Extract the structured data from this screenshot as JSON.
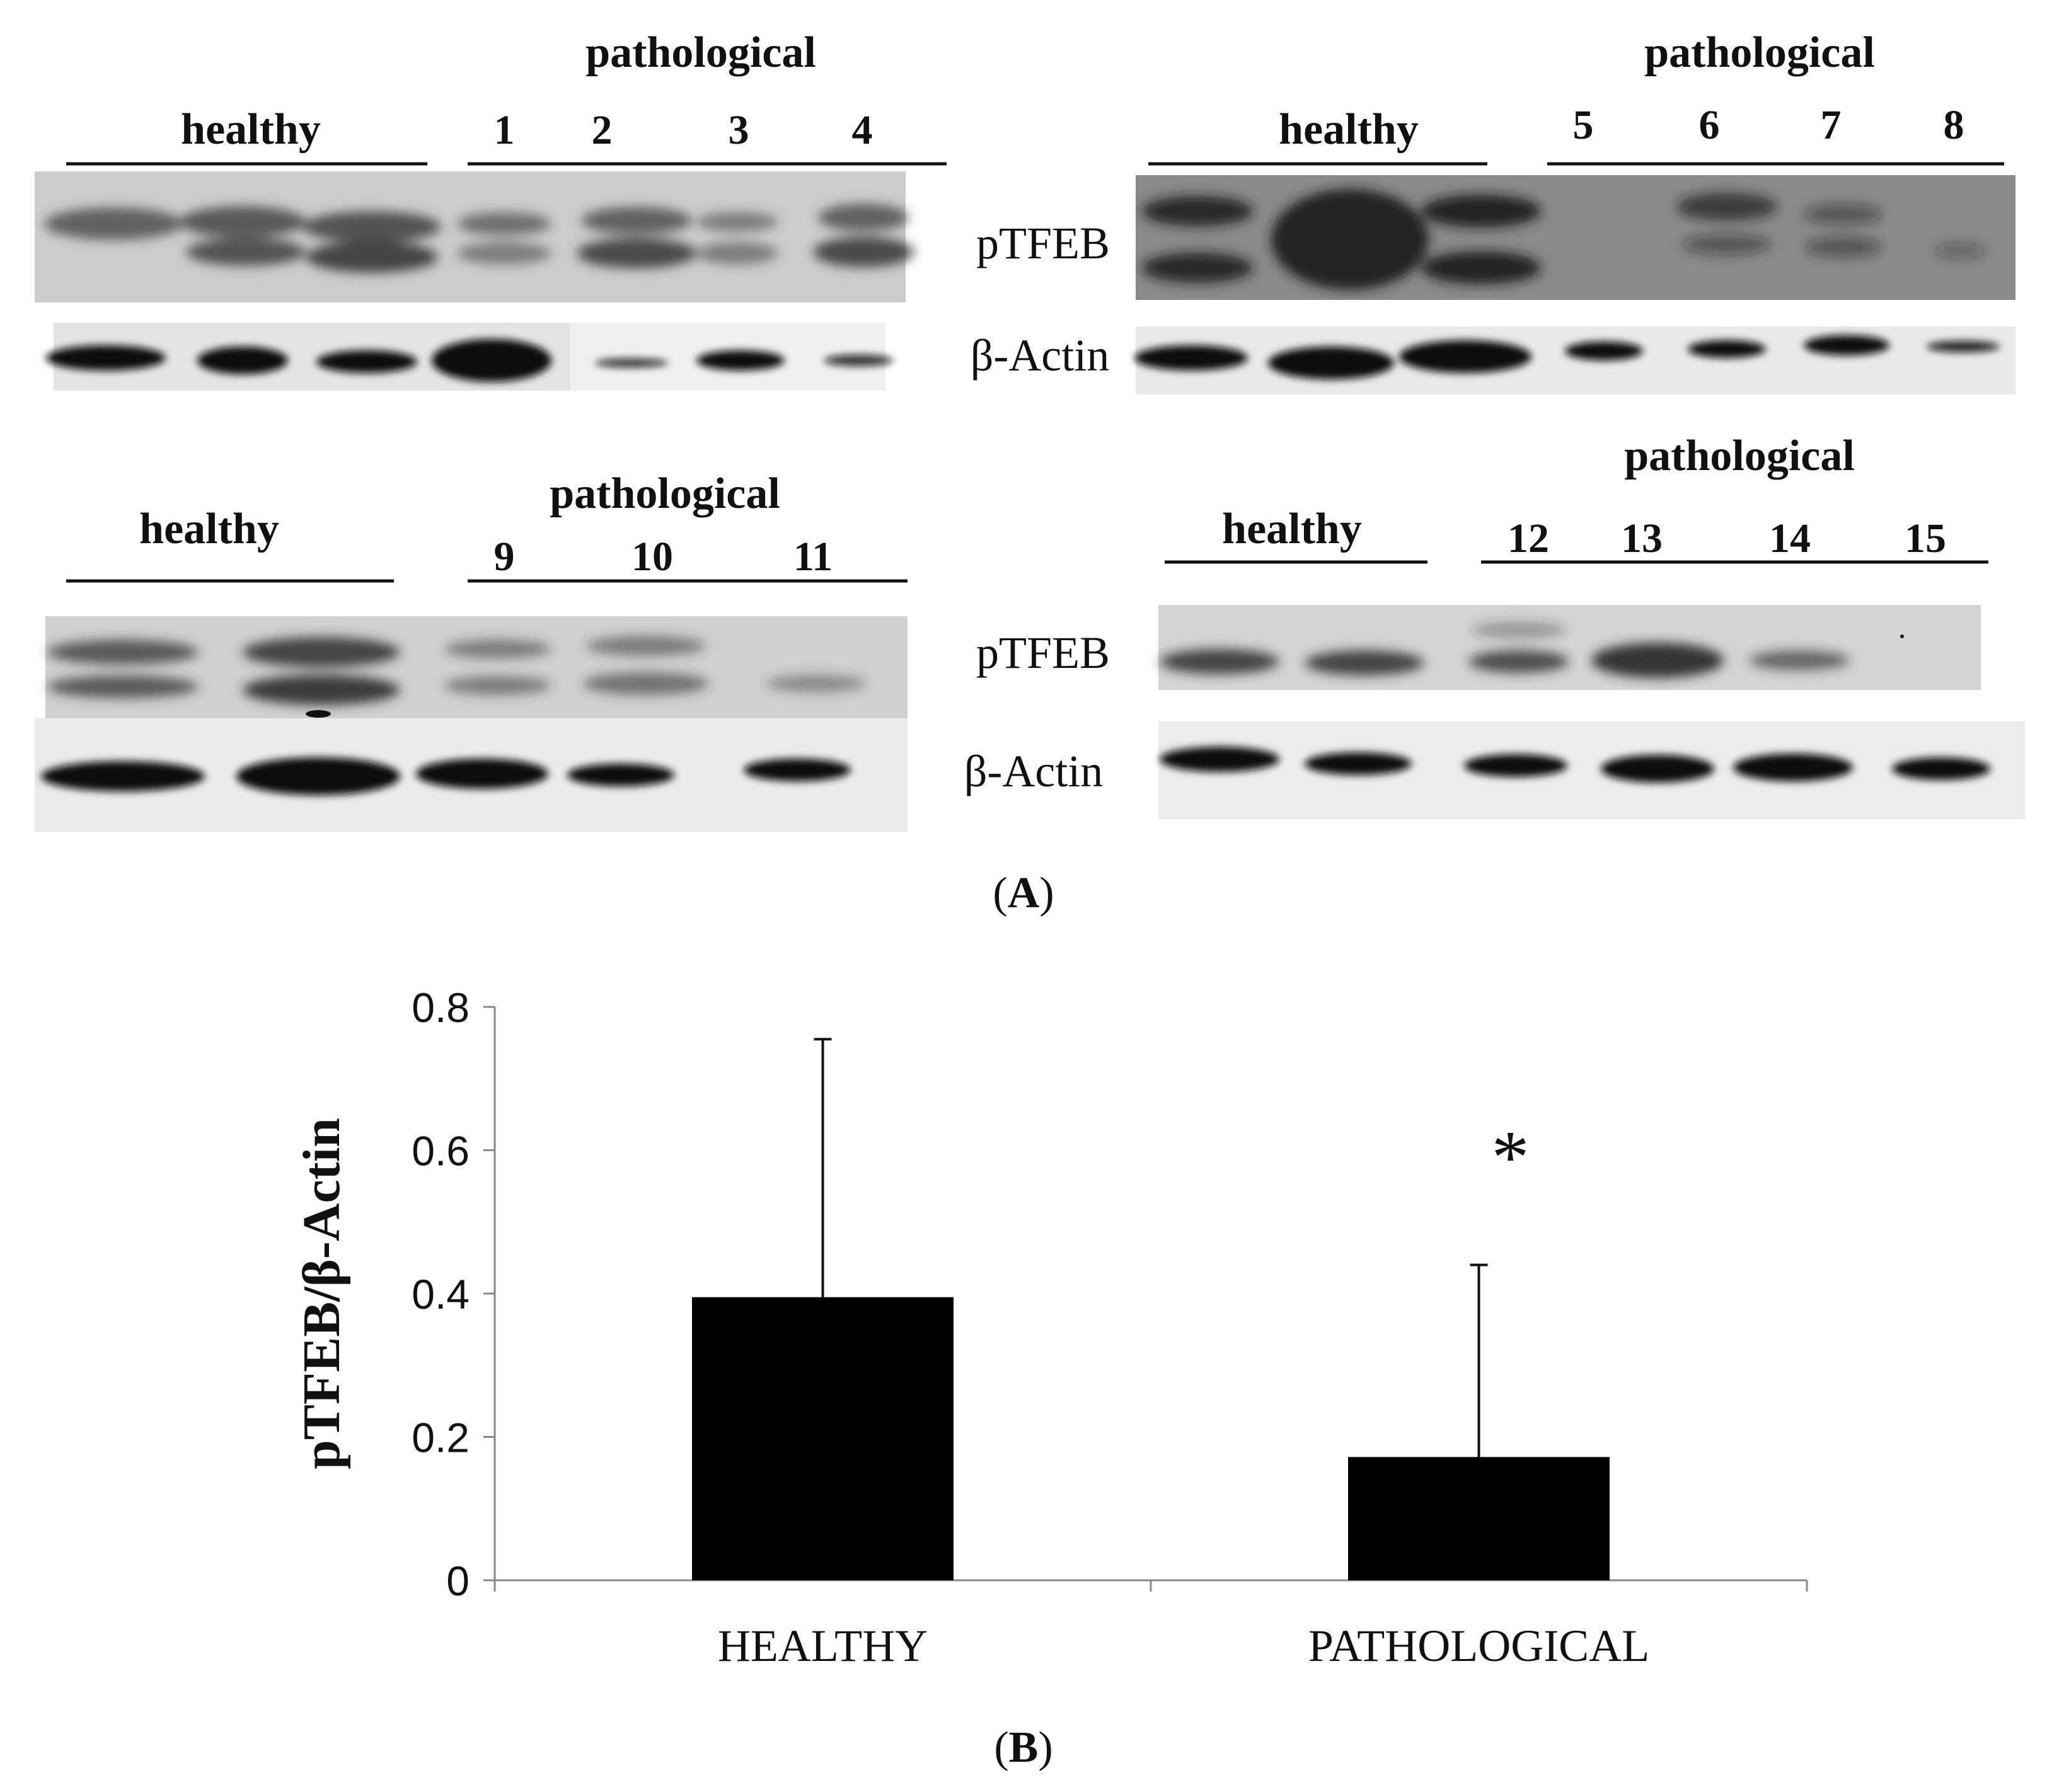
{
  "panel_a": {
    "caption_open": "(",
    "caption_letter": "A",
    "caption_close": ")",
    "blots": [
      {
        "group_label": "pathological",
        "control_label": "healthy",
        "lanes": [
          "1",
          "2",
          "3",
          "4"
        ]
      },
      {
        "group_label": "pathological",
        "control_label": "healthy",
        "lanes": [
          "5",
          "6",
          "7",
          "8"
        ]
      },
      {
        "group_label": "pathological",
        "control_label": "healthy",
        "lanes": [
          "9",
          "10",
          "11"
        ]
      },
      {
        "group_label": "pathological",
        "control_label": "healthy",
        "lanes": [
          "12",
          "13",
          "14",
          "15"
        ]
      }
    ],
    "row_labels": {
      "target": "pTFEB",
      "loading": "β-Actin"
    }
  },
  "panel_b": {
    "caption_open": "(",
    "caption_letter": "B",
    "caption_close": ")",
    "significance_marker": "*"
  },
  "chart_data": {
    "type": "bar",
    "categories": [
      "HEALTHY",
      "PATHOLOGICAL"
    ],
    "values": [
      0.395,
      0.172
    ],
    "error_upper": [
      0.755,
      0.44
    ],
    "ylabel": "pTFEB/β-Actin",
    "xlabel": "",
    "ylim": [
      0,
      0.8
    ],
    "yticks": [
      "0",
      "0.2",
      "0.4",
      "0.6",
      "0.8"
    ],
    "bar_color": "#000000",
    "annotations": [
      {
        "category": "PATHOLOGICAL",
        "text": "*"
      }
    ]
  }
}
